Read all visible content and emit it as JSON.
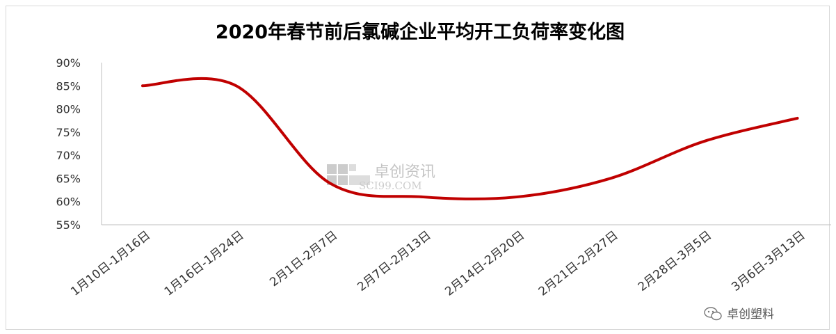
{
  "chart_data": {
    "type": "line",
    "title": "2020年春节前后氯碱企业平均开工负荷率变化图",
    "xlabel": "",
    "ylabel": "",
    "ylim": [
      0.55,
      0.9
    ],
    "y_ticks": [
      "90%",
      "85%",
      "80%",
      "75%",
      "70%",
      "65%",
      "60%",
      "55%"
    ],
    "categories": [
      "1月10日-1月16日",
      "1月16日-1月24日",
      "2月1日-2月7日",
      "2月7日-2月13日",
      "2月14日-2月20日",
      "2月21日-2月27日",
      "2月28日-3月5日",
      "3月6日-3月13日"
    ],
    "series": [
      {
        "values": [
          0.85,
          0.85,
          0.64,
          0.61,
          0.61,
          0.65,
          0.73,
          0.78
        ],
        "color": "#c00000"
      }
    ],
    "grid": false,
    "legend": "none"
  },
  "watermark": {
    "brand_cn": "卓创资讯",
    "brand_en": "SCI99.COM"
  },
  "footer_brand": {
    "icon": "wechat-icon",
    "label": "卓创塑料"
  }
}
